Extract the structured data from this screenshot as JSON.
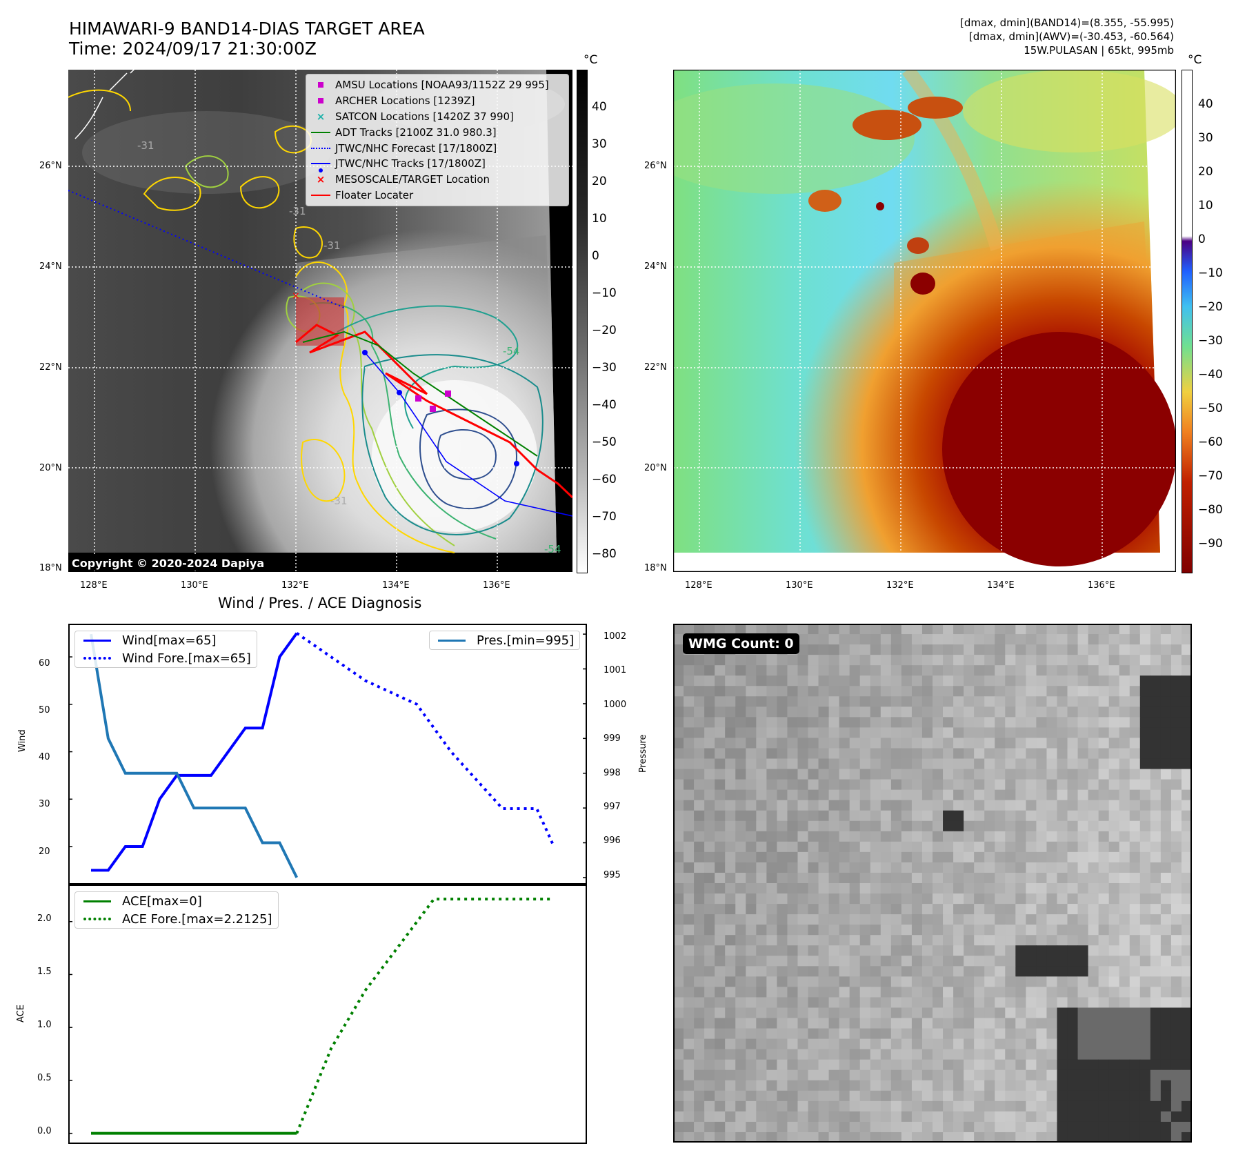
{
  "header": {
    "title_line1": "HIMAWARI-9 BAND14-DIAS TARGET AREA",
    "title_line2": "Time: 2024/09/17 21:30:00Z",
    "right_line1": "[dmax, dmin](BAND14)=(8.355, -55.995)",
    "right_line2": "[dmax, dmin](AWV)=(-30.453, -60.564)",
    "right_line3": "15W.PULASAN | 65kt, 995mb"
  },
  "map": {
    "lon_ticks": [
      "128°E",
      "130°E",
      "132°E",
      "134°E",
      "136°E"
    ],
    "lat_ticks": [
      "18°N",
      "20°N",
      "22°N",
      "24°N",
      "26°N"
    ],
    "copyright": "Copyright © 2020-2024 Dapiya",
    "contour_labels": [
      "-31",
      "-31",
      "-31",
      "-31",
      "-54",
      "-54"
    ],
    "legend": [
      {
        "label": "AMSU Locations [NOAA93/1152Z 29 995]",
        "marker": "square",
        "color": "#cc00cc"
      },
      {
        "label": "ARCHER Locations [1239Z]",
        "marker": "square",
        "color": "#cc00cc"
      },
      {
        "label": "SATCON Locations [1420Z 37 990]",
        "marker": "x",
        "color": "#20b2aa"
      },
      {
        "label": "ADT Tracks [2100Z 31.0 980.3]",
        "marker": "line",
        "color": "#008000"
      },
      {
        "label": "JTWC/NHC Forecast [17/1800Z]",
        "marker": "dotted",
        "color": "#0000ff"
      },
      {
        "label": "JTWC/NHC Tracks [17/1800Z]",
        "marker": "line-dot",
        "color": "#0000ff"
      },
      {
        "label": "MESOSCALE/TARGET Location",
        "marker": "x",
        "color": "#ff0000"
      },
      {
        "label": "Floater Locater",
        "marker": "line",
        "color": "#ff0000"
      }
    ]
  },
  "colorbar_gray": {
    "unit": "°C",
    "ticks": [
      "40",
      "30",
      "20",
      "10",
      "0",
      "−10",
      "−20",
      "−30",
      "−40",
      "−50",
      "−60",
      "−70",
      "−80"
    ]
  },
  "colorbar_color": {
    "unit": "°C",
    "ticks": [
      "40",
      "30",
      "20",
      "10",
      "0",
      "−10",
      "−20",
      "−30",
      "−40",
      "−50",
      "−60",
      "−70",
      "−80",
      "−90"
    ]
  },
  "diagnosis": {
    "title": "Wind / Pres. / ACE Diagnosis",
    "wind_ylabel": "Wind",
    "pres_ylabel": "Pressure",
    "ace_ylabel": "ACE",
    "wind_ticks": [
      "60",
      "50",
      "40",
      "30",
      "20"
    ],
    "pres_ticks": [
      "1002",
      "1001",
      "1000",
      "999",
      "998",
      "997",
      "996",
      "995"
    ],
    "ace_ticks": [
      "2.0",
      "1.5",
      "1.0",
      "0.5",
      "0.0"
    ],
    "legend_wind": "Wind[max=65]",
    "legend_wind_fore": "Wind Fore.[max=65]",
    "legend_pres": "Pres.[min=995]",
    "legend_ace": "ACE[max=0]",
    "legend_ace_fore": "ACE Fore.[max=2.2125]"
  },
  "wmg": {
    "label": "WMG Count: 0"
  },
  "chart_data": [
    {
      "type": "line",
      "title": "Wind / Pres. / ACE Diagnosis",
      "ylabel": "Wind",
      "ylim": [
        12,
        67
      ],
      "series": [
        {
          "name": "Wind[max=65]",
          "color": "#0000ff",
          "style": "solid",
          "x": [
            0,
            1,
            2,
            3,
            4,
            5,
            6,
            7,
            8,
            9,
            10,
            11,
            12
          ],
          "values": [
            15,
            15,
            20,
            20,
            30,
            35,
            35,
            35,
            40,
            45,
            45,
            60,
            65
          ]
        },
        {
          "name": "Wind Fore.[max=65]",
          "color": "#0000ff",
          "style": "dotted",
          "x": [
            12,
            16,
            19,
            21,
            24,
            26,
            27
          ],
          "values": [
            65,
            55,
            50,
            40,
            28,
            28,
            20
          ]
        }
      ]
    },
    {
      "type": "line",
      "ylabel": "Pressure",
      "ylim": [
        994.8,
        1002.3
      ],
      "series": [
        {
          "name": "Pres.[min=995]",
          "color": "#1f77b4",
          "style": "solid",
          "x": [
            0,
            1,
            2,
            3,
            4,
            5,
            6,
            7,
            8,
            9,
            10,
            11,
            12
          ],
          "values": [
            1002,
            999,
            998,
            998,
            998,
            998,
            997,
            997,
            997,
            997,
            996,
            996,
            995
          ]
        }
      ]
    },
    {
      "type": "line",
      "ylabel": "ACE",
      "ylim": [
        -0.1,
        2.35
      ],
      "series": [
        {
          "name": "ACE[max=0]",
          "color": "#008000",
          "style": "solid",
          "x": [
            0,
            12
          ],
          "values": [
            0,
            0
          ]
        },
        {
          "name": "ACE Fore.[max=2.2125]",
          "color": "#008000",
          "style": "dotted",
          "x": [
            12,
            14,
            16,
            18,
            20,
            24,
            27
          ],
          "values": [
            0,
            0.8,
            1.35,
            1.78,
            2.2125,
            2.2125,
            2.2125
          ]
        }
      ]
    }
  ]
}
